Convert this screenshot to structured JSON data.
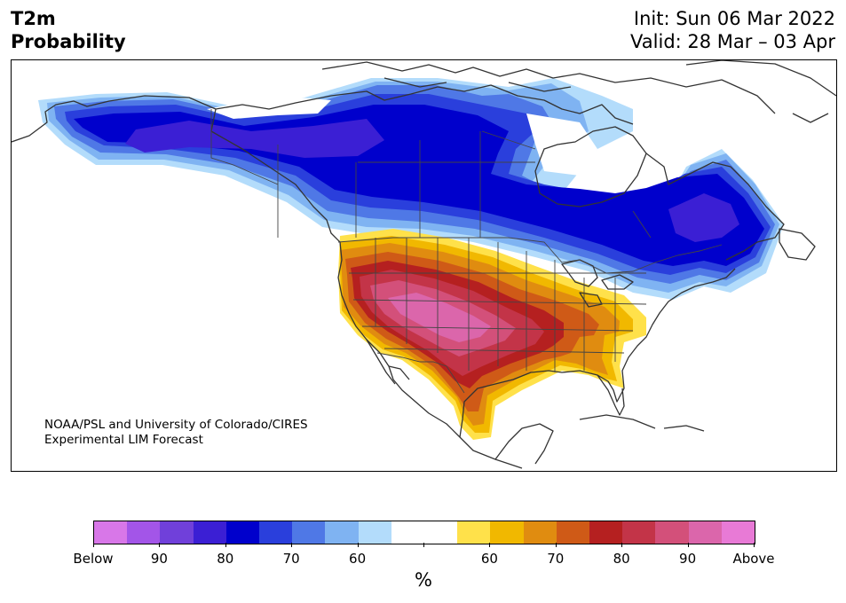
{
  "title": {
    "variable": "T2m",
    "product": "Probability",
    "init": "Init: Sun 06 Mar 2022",
    "valid": "Valid: 28 Mar – 03 Apr"
  },
  "credit": {
    "line1": "NOAA/PSL and University of Colorado/CIRES",
    "line2": "Experimental LIM Forecast"
  },
  "colorbar": {
    "colors": [
      "#d877e8",
      "#a355e8",
      "#7040da",
      "#3b1fd4",
      "#0000cc",
      "#2a3fdc",
      "#4f78e6",
      "#7fb3f2",
      "#b3dcfb",
      "#ffffff",
      "#ffffff",
      "#ffe14a",
      "#f1b800",
      "#e08c10",
      "#cf5a17",
      "#b52020",
      "#c33448",
      "#d3507a",
      "#db66ab",
      "#e87ad6"
    ],
    "tick_labels": [
      "Below",
      "90",
      "80",
      "70",
      "60",
      "",
      "60",
      "70",
      "80",
      "90",
      "Above"
    ],
    "unit": "%"
  },
  "map": {
    "below_normal_regions": [
      "Alaska",
      "Northern Canada",
      "Quebec",
      "Great Lakes"
    ],
    "above_normal_regions": [
      "Southern Plains",
      "Texas",
      "Southeast",
      "Southwest",
      "Northern Mexico"
    ]
  }
}
